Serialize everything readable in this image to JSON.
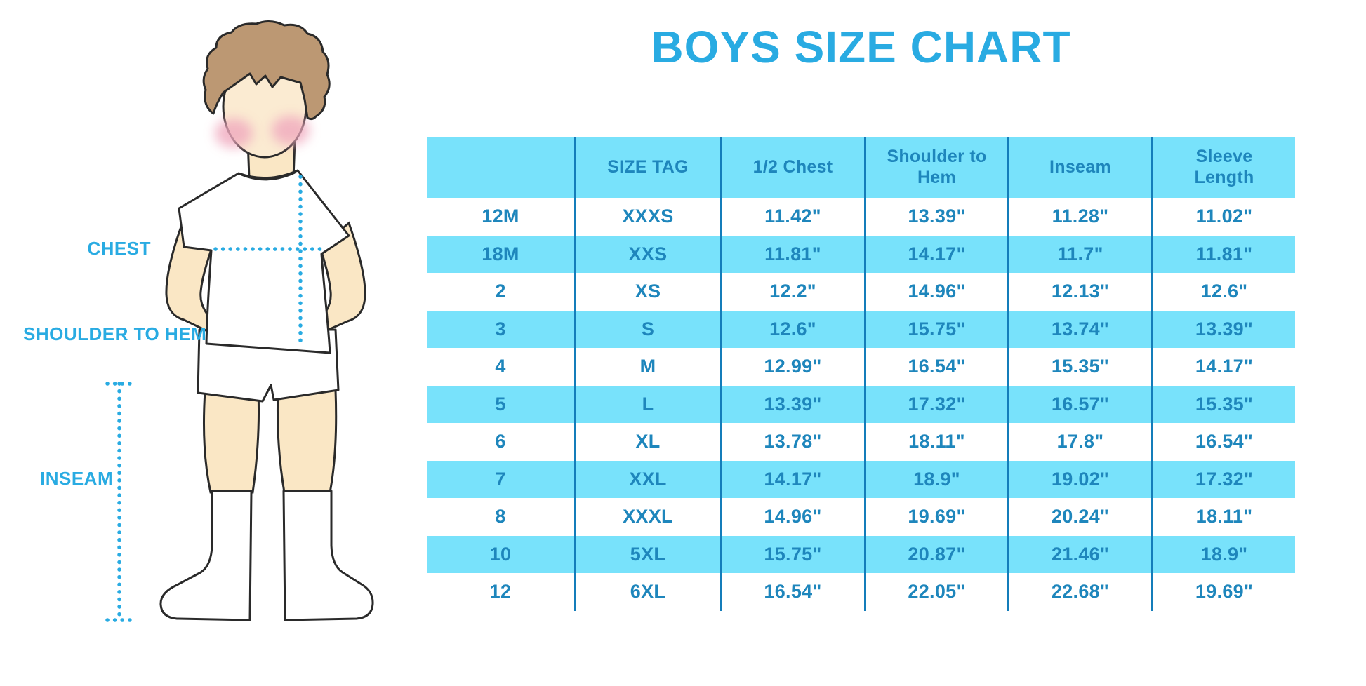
{
  "title": "BOYS SIZE CHART",
  "colors": {
    "accent_blue": "#29ABE2",
    "row_band_blue": "#78E2FB",
    "table_text_blue": "#1E86BC",
    "separator_blue": "#147DBA",
    "skin": "#FAE7C5",
    "hair": "#BC9873",
    "blush": "#F0A9BE"
  },
  "figure": {
    "labels": [
      {
        "id": "chest",
        "text": "CHEST"
      },
      {
        "id": "shoulder-to-hem",
        "text": "SHOULDER TO HEM"
      },
      {
        "id": "inseam",
        "text": "INSEAM"
      }
    ]
  },
  "chart_data": {
    "type": "table",
    "title": "BOYS SIZE CHART",
    "columns": [
      "",
      "SIZE TAG",
      "1/2 Chest",
      "Shoulder to Hem",
      "Inseam",
      "Sleeve Length"
    ],
    "units": "inches",
    "rows": [
      [
        "12M",
        "XXXS",
        "11.42\"",
        "13.39\"",
        "11.28\"",
        "11.02\""
      ],
      [
        "18M",
        "XXS",
        "11.81\"",
        "14.17\"",
        "11.7\"",
        "11.81\""
      ],
      [
        "2",
        "XS",
        "12.2\"",
        "14.96\"",
        "12.13\"",
        "12.6\""
      ],
      [
        "3",
        "S",
        "12.6\"",
        "15.75\"",
        "13.74\"",
        "13.39\""
      ],
      [
        "4",
        "M",
        "12.99\"",
        "16.54\"",
        "15.35\"",
        "14.17\""
      ],
      [
        "5",
        "L",
        "13.39\"",
        "17.32\"",
        "16.57\"",
        "15.35\""
      ],
      [
        "6",
        "XL",
        "13.78\"",
        "18.11\"",
        "17.8\"",
        "16.54\""
      ],
      [
        "7",
        "XXL",
        "14.17\"",
        "18.9\"",
        "19.02\"",
        "17.32\""
      ],
      [
        "8",
        "XXXL",
        "14.96\"",
        "19.69\"",
        "20.24\"",
        "18.11\""
      ],
      [
        "10",
        "5XL",
        "15.75\"",
        "20.87\"",
        "21.46\"",
        "18.9\""
      ],
      [
        "12",
        "6XL",
        "16.54\"",
        "22.05\"",
        "22.68\"",
        "19.69\""
      ]
    ]
  }
}
